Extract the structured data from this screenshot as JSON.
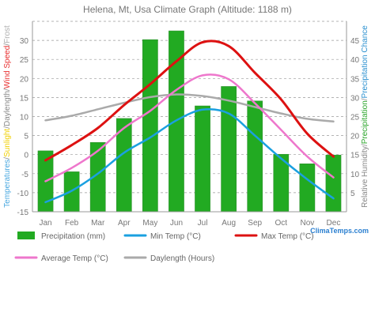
{
  "chart_data": {
    "type": "bar",
    "title": "Helena, Mt, Usa Climate Graph (Altitude: 1188 m)",
    "categories": [
      "Jan",
      "Feb",
      "Mar",
      "Apr",
      "May",
      "Jun",
      "Jul",
      "Aug",
      "Sep",
      "Oct",
      "Nov",
      "Dec"
    ],
    "left_axis": {
      "ylim": [
        -15,
        35
      ],
      "ticks": [
        -15,
        -10,
        -5,
        0,
        5,
        10,
        15,
        20,
        25,
        30
      ],
      "label_parts": [
        {
          "text": "Temperatures",
          "color": "#4aa8e0"
        },
        {
          "text": "/",
          "color": "#888888"
        },
        {
          "text": "Sunlight",
          "color": "#f0d000"
        },
        {
          "text": "/",
          "color": "#888888"
        },
        {
          "text": "Daylength",
          "color": "#888888"
        },
        {
          "text": "/",
          "color": "#888888"
        },
        {
          "text": "Wind Speed",
          "color": "#e83030"
        },
        {
          "text": "/",
          "color": "#888888"
        },
        {
          "text": "Frost",
          "color": "#b0b0b0"
        }
      ]
    },
    "right_axis": {
      "ylim": [
        0,
        50
      ],
      "ticks": [
        5,
        10,
        15,
        20,
        25,
        30,
        35,
        40,
        45
      ],
      "label_parts": [
        {
          "text": "Relative Humidity",
          "color": "#888888"
        },
        {
          "text": "/",
          "color": "#888888"
        },
        {
          "text": "Precipitation",
          "color": "#2aa52a"
        },
        {
          "text": "/",
          "color": "#888888"
        },
        {
          "text": "Precipitation Chance",
          "color": "#2a90d0"
        }
      ]
    },
    "series": [
      {
        "name": "Precipitation (mm)",
        "kind": "bar",
        "axis": "right",
        "color": "#22aa22",
        "values": [
          16,
          10.5,
          18.2,
          24.5,
          45.2,
          47.5,
          27.8,
          32.9,
          29.1,
          15.1,
          12.6,
          14.9
        ]
      },
      {
        "name": "Min Temp (°C)",
        "kind": "line",
        "axis": "left",
        "color": "#1aa0e0",
        "values": [
          -12.5,
          -9.5,
          -5,
          0.5,
          4.5,
          9,
          11.8,
          10.8,
          5,
          -1,
          -6.5,
          -11.5
        ]
      },
      {
        "name": "Max Temp (°C)",
        "kind": "line",
        "axis": "left",
        "color": "#dd1111",
        "values": [
          -1.5,
          2.5,
          7,
          13,
          18.5,
          24.5,
          29.5,
          28.5,
          21.5,
          14.5,
          5.5,
          -0.5
        ]
      },
      {
        "name": "Average Temp (°C)",
        "kind": "line",
        "axis": "left",
        "color": "#ee77cc",
        "values": [
          -7,
          -3.5,
          1,
          7,
          11.5,
          17,
          20.8,
          19.8,
          13.5,
          6.5,
          -0.5,
          -6
        ]
      },
      {
        "name": "Daylength (Hours)",
        "kind": "line",
        "axis": "left",
        "color": "#aaaaaa",
        "values": [
          9,
          10.2,
          11.9,
          13.6,
          15.1,
          15.8,
          15.4,
          14.2,
          12.5,
          10.8,
          9.4,
          8.7
        ]
      }
    ],
    "legend_placement": "bottom",
    "grid": true,
    "watermark": "ClimaTemps.com"
  }
}
